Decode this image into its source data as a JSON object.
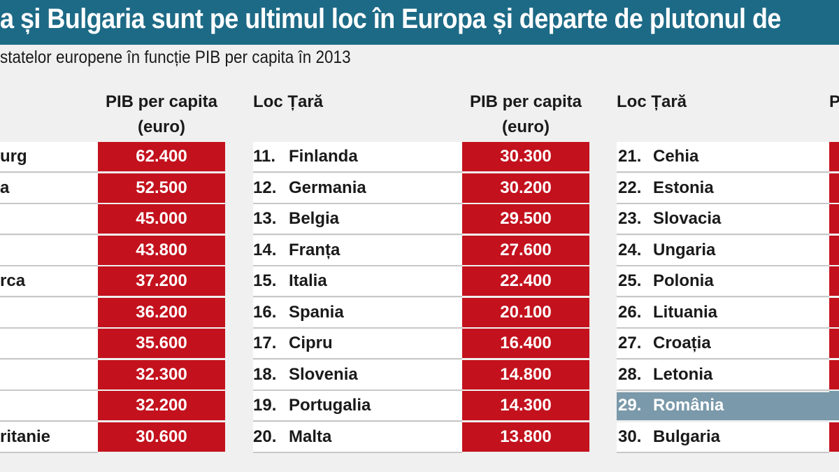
{
  "title": "a și Bulgaria sunt pe ultimul loc în Europa și departe de plutonul de",
  "subtitle": "statelor europene în funcție PIB per capita în 2013",
  "headers": {
    "loc_tara": "Loc Țară",
    "pib_line1": "PIB per capita",
    "pib_line2": "(euro)",
    "col3_pib_partial": "P"
  },
  "colors": {
    "banner": "#1d6a86",
    "value_cell": "#c3121d",
    "highlight_row": "#7a99aa",
    "panel": "#f0f0f0"
  },
  "column1": [
    {
      "name": "urg",
      "value": "62.400"
    },
    {
      "name": "a",
      "value": "52.500"
    },
    {
      "name": "",
      "value": "45.000"
    },
    {
      "name": "",
      "value": "43.800"
    },
    {
      "name": "rca",
      "value": "37.200"
    },
    {
      "name": "",
      "value": "36.200"
    },
    {
      "name": "",
      "value": "35.600"
    },
    {
      "name": "",
      "value": "32.300"
    },
    {
      "name": "",
      "value": "32.200"
    },
    {
      "name": "ritanie",
      "value": "30.600"
    }
  ],
  "column2": [
    {
      "rank": "11.",
      "name": "Finlanda",
      "value": "30.300"
    },
    {
      "rank": "12.",
      "name": "Germania",
      "value": "30.200"
    },
    {
      "rank": "13.",
      "name": "Belgia",
      "value": "29.500"
    },
    {
      "rank": "14.",
      "name": "Franța",
      "value": "27.600"
    },
    {
      "rank": "15.",
      "name": "Italia",
      "value": "22.400"
    },
    {
      "rank": "16.",
      "name": "Spania",
      "value": "20.100"
    },
    {
      "rank": "17.",
      "name": "Cipru",
      "value": "16.400"
    },
    {
      "rank": "18.",
      "name": "Slovenia",
      "value": "14.800"
    },
    {
      "rank": "19.",
      "name": "Portugalia",
      "value": "14.300"
    },
    {
      "rank": "20.",
      "name": "Malta",
      "value": "13.800"
    }
  ],
  "column3": [
    {
      "rank": "21.",
      "name": "Cehia"
    },
    {
      "rank": "22.",
      "name": "Estonia"
    },
    {
      "rank": "23.",
      "name": "Slovacia"
    },
    {
      "rank": "24.",
      "name": "Ungaria"
    },
    {
      "rank": "25.",
      "name": "Polonia"
    },
    {
      "rank": "26.",
      "name": "Lituania"
    },
    {
      "rank": "27.",
      "name": "Croația"
    },
    {
      "rank": "28.",
      "name": "Letonia"
    },
    {
      "rank": "29.",
      "name": "România",
      "highlight": true
    },
    {
      "rank": "30.",
      "name": "Bulgaria"
    }
  ]
}
